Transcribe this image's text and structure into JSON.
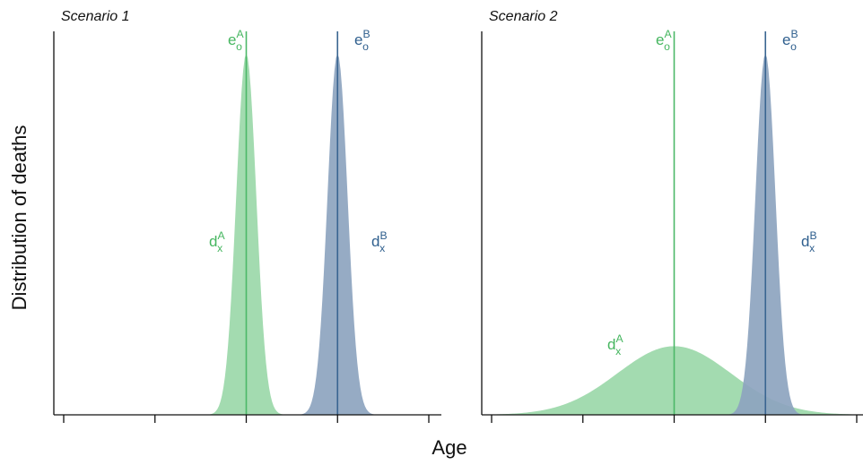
{
  "ylabel": "Distribution of deaths",
  "xlabel": "Age",
  "colors": {
    "A_fill": "#a3dbb0",
    "A_line": "#4cb868",
    "A_text": "#45b65f",
    "B_fill": "#8da4bf",
    "B_line": "#3a6591",
    "B_text": "#2f5f8e",
    "axis": "#111111"
  },
  "chart_data": [
    {
      "type": "area",
      "title": "Scenario 1",
      "xlim": [
        0,
        4
      ],
      "xticks": [
        0,
        1,
        2,
        3,
        4
      ],
      "ylim": [
        0,
        1.05
      ],
      "series": [
        {
          "name": "A",
          "density": "normal",
          "mean": 2.0,
          "sd": 0.11,
          "peak": 1.0,
          "curve_label": "d",
          "curve_sub": "x",
          "curve_sup": "A",
          "mean_label": "e",
          "mean_sub": "o",
          "mean_sup": "A"
        },
        {
          "name": "B",
          "density": "normal",
          "mean": 3.0,
          "sd": 0.11,
          "peak": 1.0,
          "curve_label": "d",
          "curve_sub": "x",
          "curve_sup": "B",
          "mean_label": "e",
          "mean_sub": "o",
          "mean_sup": "B"
        }
      ]
    },
    {
      "type": "area",
      "title": "Scenario 2",
      "xlim": [
        0,
        4
      ],
      "xticks": [
        0,
        1,
        2,
        3,
        4
      ],
      "ylim": [
        0,
        1.05
      ],
      "series": [
        {
          "name": "A",
          "density": "normal",
          "mean": 2.0,
          "sd": 0.62,
          "peak": 0.19,
          "curve_label": "d",
          "curve_sub": "x",
          "curve_sup": "A",
          "mean_label": "e",
          "mean_sub": "o",
          "mean_sup": "A"
        },
        {
          "name": "B",
          "density": "normal",
          "mean": 3.0,
          "sd": 0.11,
          "peak": 1.0,
          "curve_label": "d",
          "curve_sub": "x",
          "curve_sup": "B",
          "mean_label": "e",
          "mean_sub": "o",
          "mean_sup": "B"
        }
      ]
    }
  ]
}
